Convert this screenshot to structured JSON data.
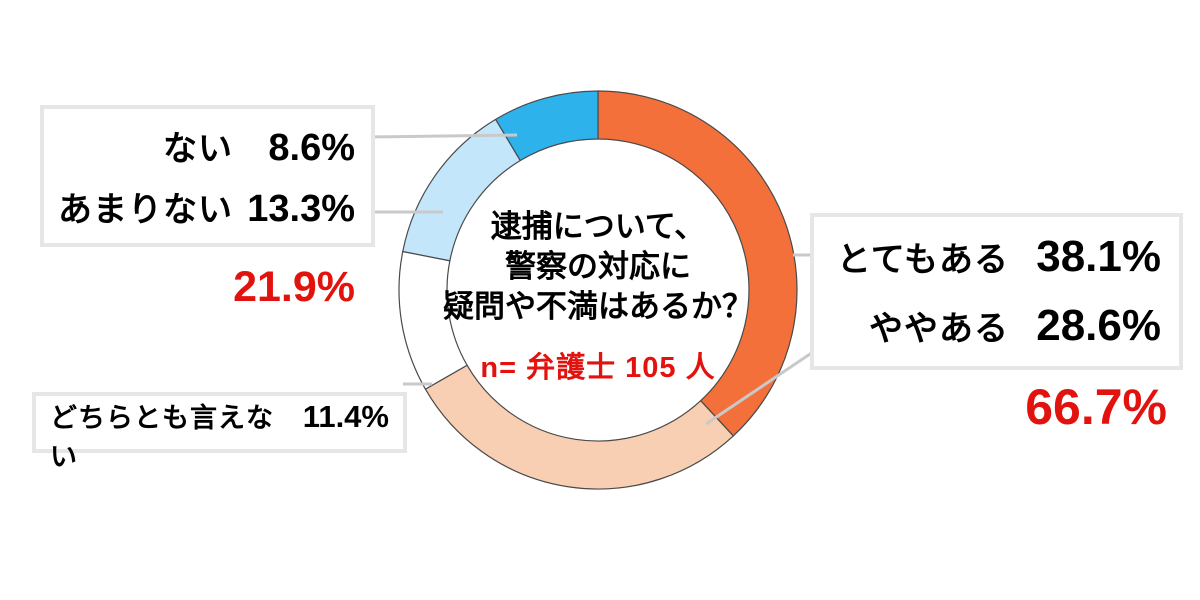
{
  "colors": {
    "accent_red": "#E2130E",
    "segment_outline": "#4A4A4A",
    "leader_line": "#C9C9C9",
    "box_border": "#E6E6E6",
    "text": "#000000",
    "background": "#FFFFFF"
  },
  "center": {
    "question_lines": [
      "逮捕について、",
      "警察の対応に",
      "疑問や不満はあるか？"
    ],
    "sample_note": "n= 弁護士 105 人"
  },
  "callouts": {
    "negative_box": {
      "rows": [
        {
          "label": "ない",
          "value": "8.6%"
        },
        {
          "label": "あまりない",
          "value": "13.3%"
        }
      ],
      "total": "21.9%"
    },
    "positive_box": {
      "rows": [
        {
          "label": "とてもある",
          "value": "38.1%"
        },
        {
          "label": "ややある",
          "value": "28.6%"
        }
      ],
      "total": "66.7%"
    },
    "neutral_box": {
      "label": "どちらとも言えない",
      "value": "11.4%"
    }
  },
  "chart_data": {
    "type": "pie",
    "subtype": "donut",
    "title": "逮捕について、警察の対応に疑問や不満はあるか？",
    "sample_note": "n= 弁護士 105 人",
    "start_angle_deg": 0,
    "direction": "clockwise",
    "legend_position": "callout-boxes",
    "segments": [
      {
        "key": "totemo-aru",
        "label": "とてもある",
        "value": 38.1,
        "color": "#F3703A"
      },
      {
        "key": "yaya-aru",
        "label": "ややある",
        "value": 28.6,
        "color": "#F9CFB4"
      },
      {
        "key": "dochira-tomo-ienai",
        "label": "どちらとも言えない",
        "value": 11.4,
        "color": "#FFFFFF"
      },
      {
        "key": "amari-nai",
        "label": "あまりない",
        "value": 13.3,
        "color": "#C4E6FA"
      },
      {
        "key": "nai",
        "label": "ない",
        "value": 8.6,
        "color": "#2EB2EC"
      }
    ],
    "group_totals": {
      "aru_total": "66.7%",
      "nai_total": "21.9%"
    }
  }
}
